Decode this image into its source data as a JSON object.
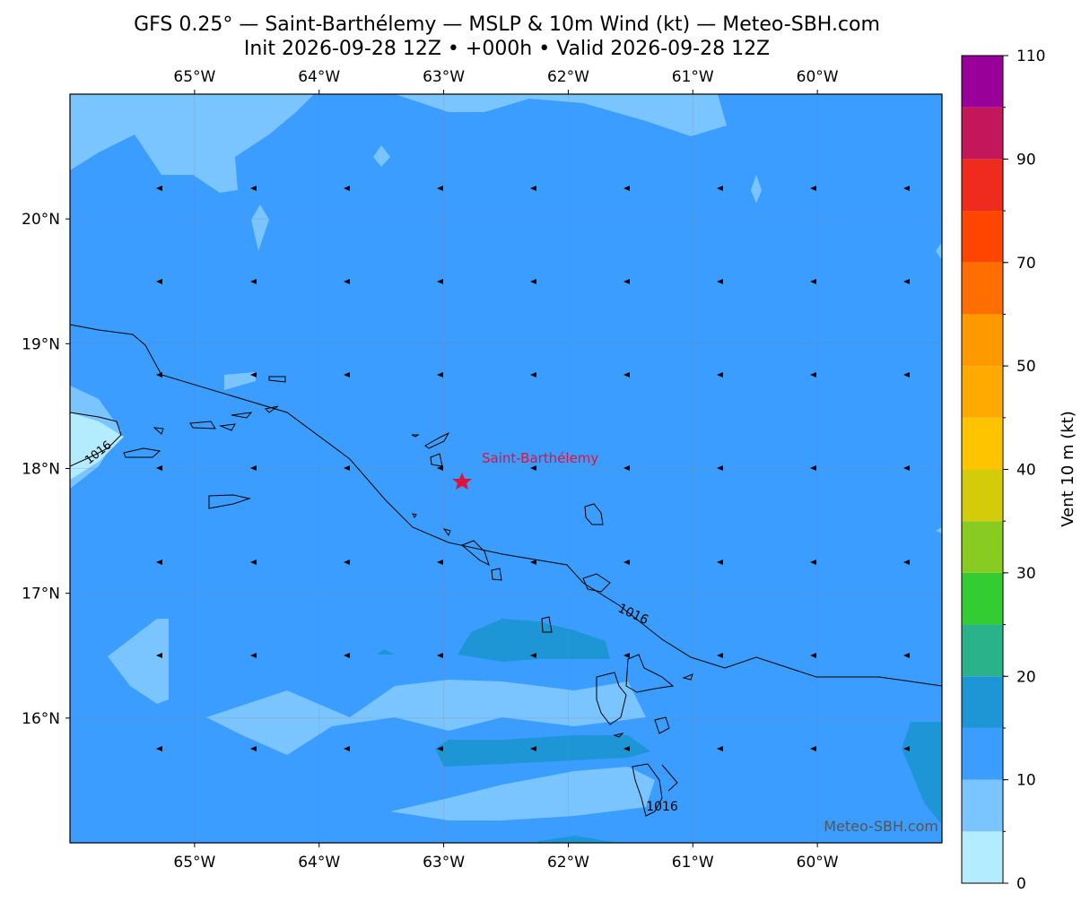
{
  "header": {
    "title": "GFS 0.25° — Saint-Barthélemy — MSLP & 10m Wind (kt) — Meteo-SBH.com",
    "subtitle": "Init 2026-09-28 12Z • +000h • Valid 2026-09-28 12Z"
  },
  "map": {
    "xlim": [
      -66,
      -59
    ],
    "ylim": [
      15,
      21
    ],
    "xticks": [
      {
        "value": -65,
        "label": "65°W"
      },
      {
        "value": -64,
        "label": "64°W"
      },
      {
        "value": -63,
        "label": "63°W"
      },
      {
        "value": -62,
        "label": "62°W"
      },
      {
        "value": -61,
        "label": "61°W"
      },
      {
        "value": -60,
        "label": "60°W"
      }
    ],
    "yticks": [
      {
        "value": 16,
        "label": "16°N"
      },
      {
        "value": 17,
        "label": "17°N"
      },
      {
        "value": 18,
        "label": "18°N"
      },
      {
        "value": 19,
        "label": "19°N"
      },
      {
        "value": 20,
        "label": "20°N"
      }
    ],
    "place_label": "Saint-Barthélemy",
    "contour_labels": [
      "1016",
      "1016",
      "1016"
    ],
    "watermark": "Meteo-SBH.com"
  },
  "colorbar": {
    "label": "Vent 10 m (kt)",
    "levels": [
      0,
      5,
      10,
      15,
      20,
      25,
      30,
      35,
      40,
      45,
      50,
      60,
      70,
      80,
      90,
      100,
      110
    ],
    "colors": [
      "#b3ecff",
      "#7ac5ff",
      "#3a9dff",
      "#1e96d6",
      "#2ab38a",
      "#33cc33",
      "#88cc22",
      "#d4cc0a",
      "#ffc400",
      "#ffaa00",
      "#ff9900",
      "#ff6e00",
      "#ff4500",
      "#ee2b1c",
      "#c2185b",
      "#990099"
    ],
    "ticks": [
      0,
      10,
      20,
      30,
      40,
      50,
      70,
      90,
      110
    ]
  }
}
